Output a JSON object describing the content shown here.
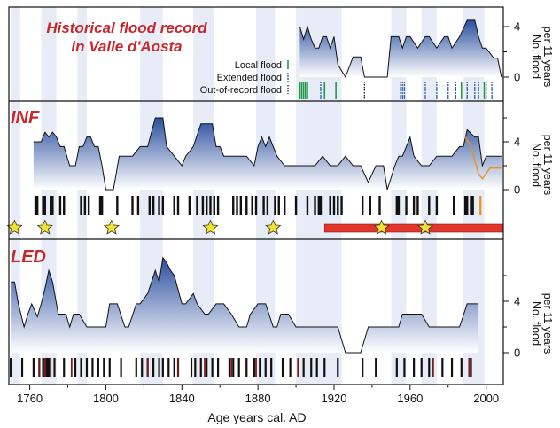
{
  "colors": {
    "title": "#c6282c",
    "fill_top": "#2b4f9e",
    "fill_bottom": "#ffffff",
    "band": "#e8ecf6",
    "local_flood": "#1e9a4a",
    "extended_flood": "#2a5db0",
    "led_event": "#7a1a1a",
    "star": "#f2e32f",
    "bar": "#e0362b",
    "orange": "#e8941c"
  },
  "xaxis": {
    "label": "Age years cal. AD",
    "ticks": [
      1760,
      1800,
      1840,
      1880,
      1920,
      1960,
      2000
    ],
    "range": [
      1749,
      2009
    ]
  },
  "ylabel": [
    "No. flood",
    "per 11 years"
  ],
  "bands": [
    [
      1750,
      1755
    ],
    [
      1766,
      1774
    ],
    [
      1785,
      1790
    ],
    [
      1818,
      1830
    ],
    [
      1846,
      1857
    ],
    [
      1879,
      1889
    ],
    [
      1900,
      1924
    ],
    [
      1950,
      1958
    ],
    [
      1966,
      1974
    ],
    [
      1988,
      1999
    ]
  ],
  "chart_data": [
    {
      "type": "area",
      "panel": "historical",
      "title_lines": [
        "Historical flood record",
        "in Valle d'Aosta"
      ],
      "yticks": [
        0,
        4
      ],
      "ylim": [
        -1,
        6
      ],
      "x": [
        1902,
        1904,
        1906,
        1908,
        1910,
        1912,
        1914,
        1916,
        1918,
        1920,
        1922,
        1926,
        1930,
        1934,
        1936,
        1940,
        1944,
        1948,
        1950,
        1954,
        1956,
        1958,
        1960,
        1964,
        1968,
        1970,
        1974,
        1978,
        1980,
        1982,
        1986,
        1990,
        1994,
        1996,
        1998,
        2000,
        2004,
        2006,
        2008
      ],
      "values": [
        4,
        3,
        4,
        3,
        2.3,
        2.3,
        3.2,
        3.2,
        2.3,
        3.2,
        1,
        0,
        1.6,
        1.6,
        0,
        0,
        0,
        0,
        3.2,
        3.2,
        2.3,
        3.2,
        3.2,
        2.3,
        3.2,
        3.2,
        2.3,
        3.2,
        3.2,
        2.3,
        3.2,
        4.5,
        4.5,
        3.2,
        2.3,
        2.3,
        1.5,
        1.5,
        0
      ],
      "legend": [
        "Local flood",
        "Extended flood",
        "Out-of-record flood"
      ],
      "events": {
        "local": [
          1902,
          1903,
          1904,
          1905,
          1906,
          1915,
          1921,
          1987,
          1999
        ],
        "extended": [
          1913,
          1955,
          1956,
          1957,
          1968,
          1974,
          1980,
          1984,
          1990,
          1994,
          1996,
          2000,
          2003
        ],
        "out_of_record": [
          1936
        ]
      }
    },
    {
      "type": "area",
      "panel": "INF",
      "title": "INF",
      "yticks": [
        0,
        4
      ],
      "ylim": [
        -1,
        6.5
      ],
      "x": [
        1762,
        1766,
        1768,
        1770,
        1772,
        1774,
        1776,
        1778,
        1781,
        1784,
        1786,
        1788,
        1790,
        1792,
        1794,
        1796,
        1798,
        1800,
        1804,
        1807,
        1810,
        1814,
        1818,
        1822,
        1826,
        1830,
        1832,
        1836,
        1840,
        1842,
        1846,
        1850,
        1856,
        1858,
        1860,
        1862,
        1866,
        1870,
        1874,
        1878,
        1880,
        1882,
        1884,
        1886,
        1888,
        1890,
        1894,
        1898,
        1902,
        1906,
        1910,
        1914,
        1918,
        1922,
        1926,
        1930,
        1934,
        1938,
        1942,
        1946,
        1948,
        1952,
        1954,
        1956,
        1958,
        1960,
        1962,
        1966,
        1970,
        1974,
        1978,
        1982,
        1986,
        1988,
        1990,
        1994,
        1996,
        1998,
        2000,
        2004,
        2008
      ],
      "values": [
        4,
        4,
        4.8,
        4.4,
        4.8,
        4.4,
        3.6,
        3.6,
        2,
        2,
        3.6,
        3.6,
        4.4,
        4.4,
        3.6,
        3.6,
        2,
        0,
        0,
        2.8,
        2.8,
        2.8,
        3.6,
        3.6,
        6,
        6,
        3.6,
        2.8,
        2,
        2.8,
        3.6,
        5.5,
        5.5,
        3.6,
        3.6,
        2.8,
        2.8,
        2.8,
        2.8,
        2,
        3.6,
        4.4,
        3.6,
        4.4,
        3.6,
        2.8,
        2,
        2,
        2,
        2,
        2,
        2.8,
        2,
        2,
        2.8,
        2,
        2,
        0.6,
        2,
        2,
        0,
        2,
        2.8,
        2.8,
        3.6,
        4.4,
        2.8,
        2,
        2,
        2.8,
        2.8,
        2.8,
        3.6,
        3.6,
        5,
        4.4,
        4.4,
        2,
        2.8,
        2.8,
        2.8
      ],
      "orange": {
        "x": [
          1989,
          1992,
          1996,
          1998,
          2002,
          2008
        ],
        "values": [
          4.4,
          3.6,
          1.3,
          0.9,
          1.8,
          1.8
        ]
      },
      "events": [
        1763,
        1764,
        1767,
        1768,
        1771,
        1772,
        1776,
        1778,
        1787,
        1789,
        1791,
        1797,
        1798,
        1806,
        1814,
        1817,
        1823,
        1825,
        1828,
        1830,
        1836,
        1838,
        1844,
        1848,
        1851,
        1853,
        1855,
        1857,
        1859,
        1867,
        1869,
        1871,
        1874,
        1877,
        1879,
        1883,
        1885,
        1889,
        1891,
        1894,
        1900,
        1906,
        1910,
        1912,
        1913,
        1918,
        1920,
        1922,
        1924,
        1935,
        1939,
        1944,
        1953,
        1954,
        1958,
        1962,
        1964,
        1970,
        1974,
        1983,
        1989,
        1990,
        1992,
        1993
      ],
      "orange_event": 1997,
      "stars": [
        1752,
        1768,
        1803,
        1855,
        1888,
        1945,
        1968
      ],
      "bar": [
        1915,
        2009
      ]
    },
    {
      "type": "area",
      "panel": "LED",
      "title": "LED",
      "yticks": [
        0,
        4
      ],
      "ylim": [
        -1,
        7.5
      ],
      "x": [
        1750,
        1752,
        1754,
        1757,
        1759,
        1761,
        1764,
        1766,
        1768,
        1770,
        1772,
        1775,
        1779,
        1781,
        1783,
        1786,
        1790,
        1792,
        1796,
        1800,
        1802,
        1806,
        1810,
        1812,
        1816,
        1818,
        1822,
        1826,
        1828,
        1830,
        1832,
        1834,
        1836,
        1840,
        1842,
        1846,
        1848,
        1852,
        1854,
        1858,
        1862,
        1866,
        1870,
        1874,
        1876,
        1880,
        1884,
        1888,
        1890,
        1892,
        1896,
        1900,
        1904,
        1908,
        1912,
        1914,
        1918,
        1922,
        1926,
        1930,
        1934,
        1938,
        1942,
        1946,
        1950,
        1954,
        1956,
        1958,
        1962,
        1966,
        1970,
        1974,
        1978,
        1982,
        1986,
        1990,
        1994,
        1996
      ],
      "values": [
        5.5,
        5.5,
        3.8,
        2,
        3,
        3.8,
        2.8,
        3.8,
        5,
        6.4,
        5.5,
        3,
        3,
        2,
        3,
        3,
        2,
        2,
        2,
        2,
        3.8,
        3.8,
        2,
        2,
        3.8,
        3.8,
        4.6,
        6.4,
        5.5,
        7.4,
        7,
        6.4,
        6,
        3.8,
        3.8,
        4.6,
        3.8,
        3,
        3,
        3.8,
        3.8,
        3,
        2,
        2,
        3,
        3.8,
        3.8,
        2,
        2,
        3,
        3,
        2,
        2,
        2,
        2,
        2,
        2,
        2,
        0,
        0,
        0,
        2,
        2,
        2,
        2,
        2,
        3,
        3,
        3,
        3,
        2,
        2,
        2,
        2,
        2,
        3.8,
        3.8,
        3.8
      ],
      "events": [
        1750,
        1756,
        1762,
        1765,
        1767,
        1768,
        1769,
        1770,
        1773,
        1778,
        1784,
        1787,
        1790,
        1793,
        1796,
        1799,
        1802,
        1808,
        1816,
        1819,
        1822,
        1825,
        1828,
        1830,
        1833,
        1836,
        1838,
        1845,
        1847,
        1850,
        1853,
        1856,
        1859,
        1865,
        1867,
        1870,
        1874,
        1878,
        1881,
        1884,
        1887,
        1893,
        1897,
        1904,
        1908,
        1911,
        1915,
        1922,
        1935,
        1942,
        1953,
        1957,
        1962,
        1966,
        1970,
        1972,
        1977,
        1982,
        1987,
        1992
      ],
      "red_events": [
        1765,
        1768,
        1771,
        1782,
        1822,
        1838,
        1852,
        1866,
        1879,
        1901,
        1972,
        1991
      ]
    }
  ]
}
